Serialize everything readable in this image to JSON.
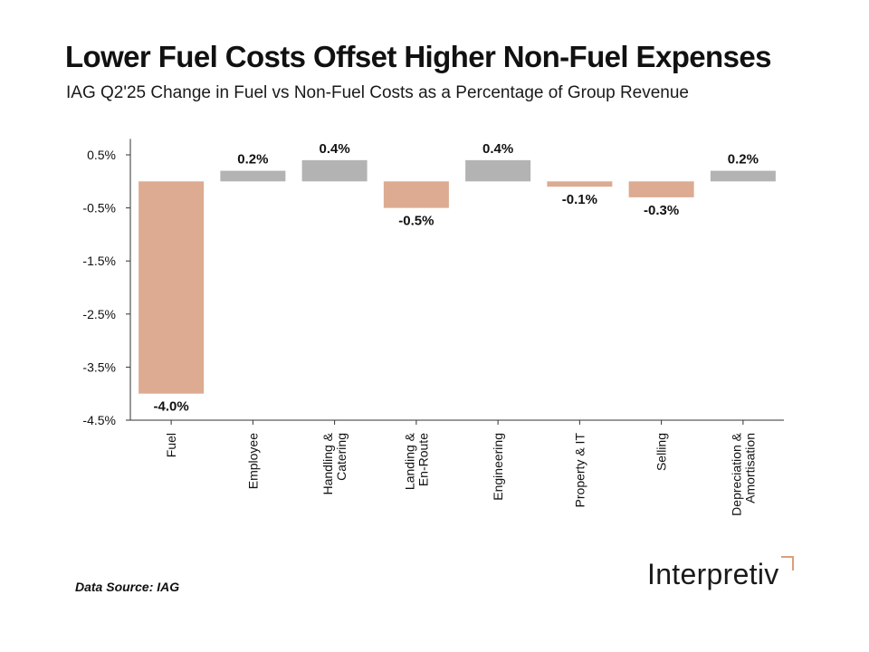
{
  "title": "Lower Fuel Costs Offset Higher Non-Fuel Expenses",
  "subtitle": "IAG Q2'25 Change in Fuel vs Non-Fuel Costs as a Percentage of Group Revenue",
  "source": "Data Source: IAG",
  "logo_text": "Interpretiv",
  "colors": {
    "negative": "#dcab91",
    "positive": "#b3b3b3",
    "axis": "#333333",
    "logo_accent": "#d9a07a"
  },
  "chart_data": {
    "type": "bar",
    "title": "Lower Fuel Costs Offset Higher Non-Fuel Expenses",
    "subtitle": "IAG Q2'25 Change in Fuel vs Non-Fuel Costs as a Percentage of Group Revenue",
    "categories": [
      [
        "Fuel"
      ],
      [
        "Employee"
      ],
      [
        "Handling &",
        "Catering"
      ],
      [
        "Landing &",
        "En-Route"
      ],
      [
        "Engineering"
      ],
      [
        "Property & IT"
      ],
      [
        "Selling"
      ],
      [
        "Depreciation &",
        "Amortisation"
      ]
    ],
    "values": [
      -4.0,
      0.2,
      0.4,
      -0.5,
      0.4,
      -0.1,
      -0.3,
      0.2
    ],
    "value_labels": [
      "-4.0%",
      "0.2%",
      "0.4%",
      "-0.5%",
      "0.4%",
      "-0.1%",
      "-0.3%",
      "0.2%"
    ],
    "yticks": [
      0.5,
      -0.5,
      -1.5,
      -2.5,
      -3.5,
      -4.5
    ],
    "ytick_labels": [
      "0.5%",
      "-0.5%",
      "-1.5%",
      "-2.5%",
      "-3.5%",
      "-4.5%"
    ],
    "ylim": [
      -4.5,
      0.8
    ],
    "xlabel": "",
    "ylabel": "",
    "grid": false,
    "legend": "none"
  }
}
